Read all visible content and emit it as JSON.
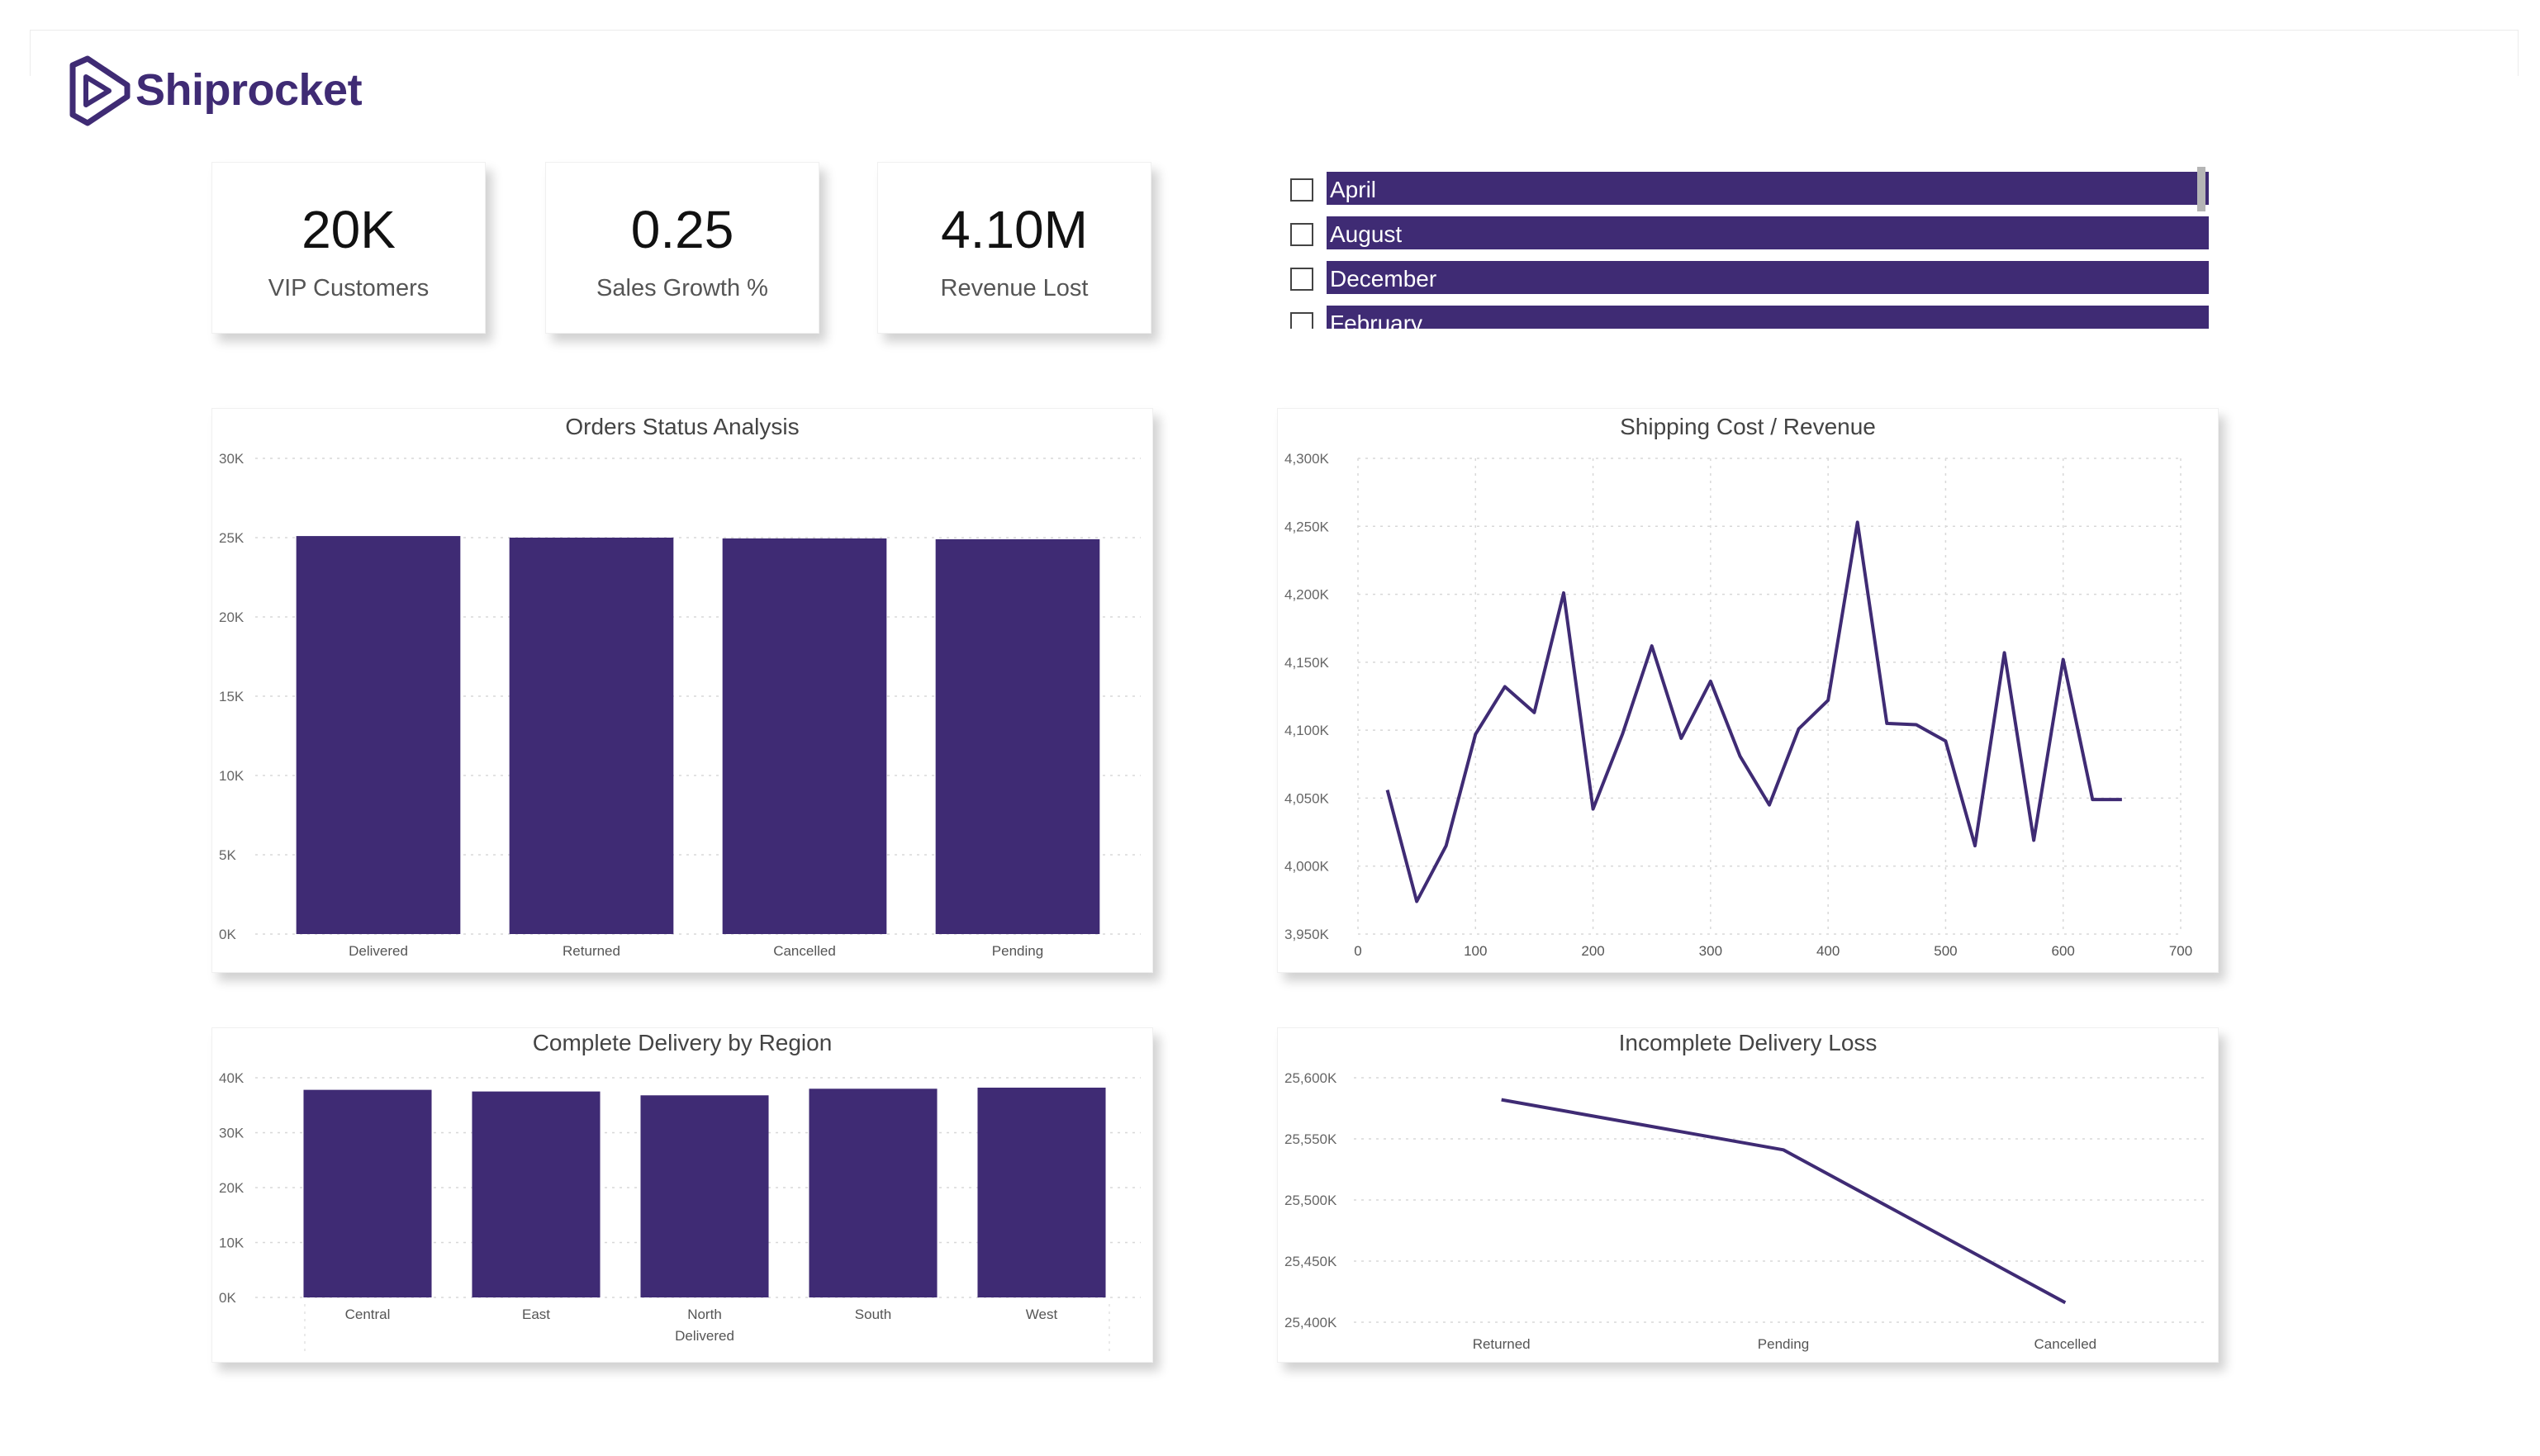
{
  "brand": {
    "name": "Shiprocket",
    "color": "#3f2b74",
    "icon": "shiprocket-logo-icon"
  },
  "kpis": [
    {
      "value": "20K",
      "label": "VIP Customers"
    },
    {
      "value": "0.25",
      "label": "Sales Growth %"
    },
    {
      "value": "4.10M",
      "label": "Revenue Lost"
    }
  ],
  "month_slicer": {
    "items": [
      "April",
      "August",
      "December",
      "February"
    ],
    "checked": [
      false,
      false,
      false,
      false
    ]
  },
  "chart_data": [
    {
      "id": "orders-status",
      "type": "bar",
      "title": "Orders Status Analysis",
      "categories": [
        "Delivered",
        "Returned",
        "Cancelled",
        "Pending"
      ],
      "values": [
        25100,
        25000,
        24950,
        24900
      ],
      "ylim": [
        0,
        30000
      ],
      "yticks": [
        "0K",
        "5K",
        "10K",
        "15K",
        "20K",
        "25K",
        "30K"
      ],
      "grid": true,
      "color": "#3f2b74"
    },
    {
      "id": "shipping-cost-revenue",
      "type": "line",
      "title": "Shipping Cost / Revenue",
      "x": [
        25,
        50,
        75,
        100,
        125,
        150,
        175,
        200,
        225,
        250,
        275,
        300,
        325,
        350,
        375,
        400,
        425,
        450,
        475,
        500,
        525,
        550,
        575,
        600,
        625,
        650
      ],
      "y": [
        4056,
        3974,
        4015,
        4097,
        4132,
        4113,
        4201,
        4042,
        4097,
        4162,
        4094,
        4136,
        4081,
        4045,
        4101,
        4122,
        4253,
        4105,
        4104,
        4092,
        4015,
        4157,
        4019,
        4152,
        4049,
        4049
      ],
      "xlim": [
        0,
        700
      ],
      "xticks": [
        "0",
        "100",
        "200",
        "300",
        "400",
        "500",
        "600",
        "700"
      ],
      "ylim": [
        3950,
        4300
      ],
      "yticks": [
        "3,950K",
        "4,000K",
        "4,050K",
        "4,100K",
        "4,150K",
        "4,200K",
        "4,250K",
        "4,300K"
      ],
      "grid": true,
      "color": "#3f2b74"
    },
    {
      "id": "complete-delivery-region",
      "type": "bar",
      "title": "Complete Delivery by Region",
      "categories": [
        "Central",
        "East",
        "North",
        "South",
        "West"
      ],
      "values": [
        37800,
        37500,
        36800,
        38000,
        38200
      ],
      "xlabel": "Delivered",
      "ylim": [
        0,
        40000
      ],
      "yticks": [
        "0K",
        "10K",
        "20K",
        "30K",
        "40K"
      ],
      "grid": true,
      "color": "#3f2b74"
    },
    {
      "id": "incomplete-delivery-loss",
      "type": "line",
      "title": "Incomplete Delivery Loss",
      "categories": [
        "Returned",
        "Pending",
        "Cancelled"
      ],
      "values": [
        25582,
        25541,
        25416
      ],
      "ylim": [
        25400,
        25600
      ],
      "yticks": [
        "25,400K",
        "25,450K",
        "25,500K",
        "25,550K",
        "25,600K"
      ],
      "grid": true,
      "color": "#3f2b74"
    }
  ]
}
